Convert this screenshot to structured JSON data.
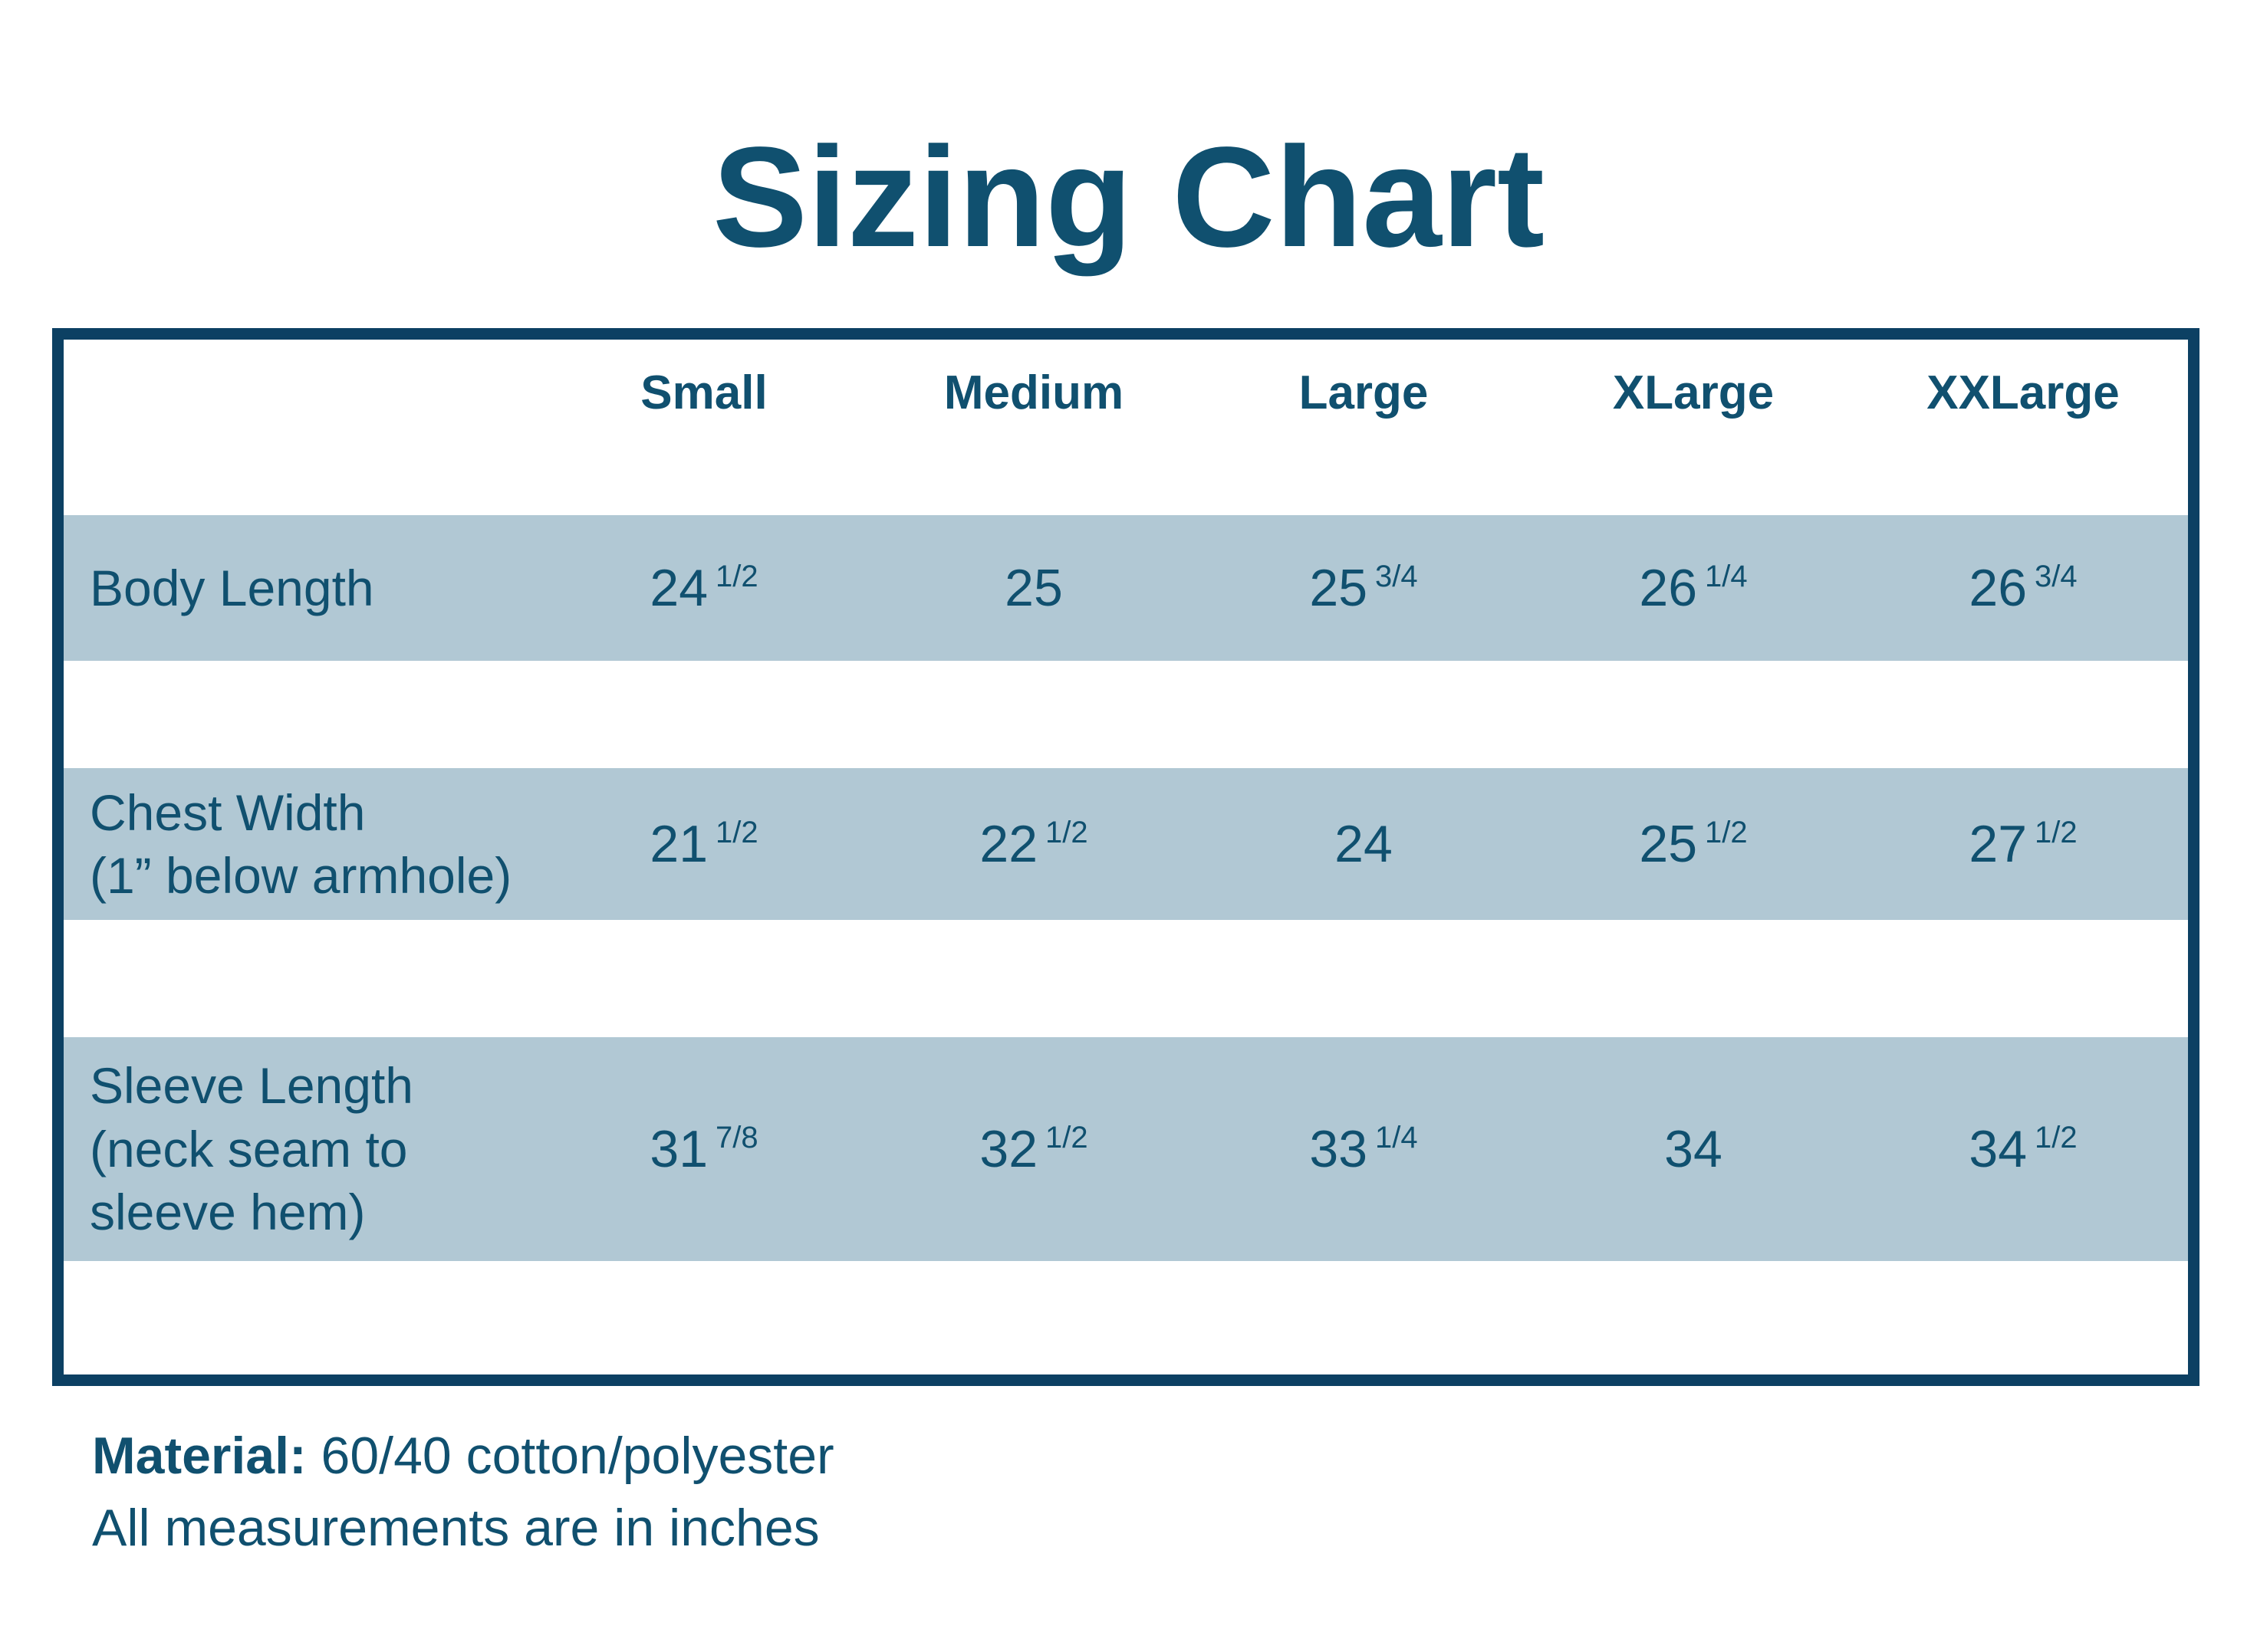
{
  "title": "Sizing Chart",
  "colors": {
    "text": "#10506f",
    "table_border": "#0c4063",
    "row_band": "#b1c8d4",
    "background": "#ffffff"
  },
  "table": {
    "columns": [
      "Small",
      "Medium",
      "Large",
      "XLarge",
      "XXLarge"
    ],
    "rows": [
      {
        "label_lines": [
          "Body Length"
        ],
        "values": [
          {
            "w": "24",
            "f": "1/2"
          },
          {
            "w": "25",
            "f": ""
          },
          {
            "w": "25",
            "f": "3/4"
          },
          {
            "w": "26",
            "f": "1/4"
          },
          {
            "w": "26",
            "f": "3/4"
          }
        ]
      },
      {
        "label_lines": [
          "Chest Width",
          "(1” below armhole)"
        ],
        "values": [
          {
            "w": "21",
            "f": "1/2"
          },
          {
            "w": "22",
            "f": "1/2"
          },
          {
            "w": "24",
            "f": ""
          },
          {
            "w": "25",
            "f": "1/2"
          },
          {
            "w": "27",
            "f": "1/2"
          }
        ]
      },
      {
        "label_lines": [
          "Sleeve Length",
          "(neck seam to",
          "sleeve hem)"
        ],
        "values": [
          {
            "w": "31",
            "f": "7/8"
          },
          {
            "w": "32",
            "f": "1/2"
          },
          {
            "w": "33",
            "f": "1/4"
          },
          {
            "w": "34",
            "f": ""
          },
          {
            "w": "34",
            "f": "1/2"
          }
        ]
      }
    ]
  },
  "footer": {
    "material_label": "Material:",
    "material_value": "60/40 cotton/polyester",
    "note": "All measurements are in inches"
  },
  "chart_data": {
    "type": "table",
    "title": "Sizing Chart",
    "columns": [
      "Small",
      "Medium",
      "Large",
      "XLarge",
      "XXLarge"
    ],
    "rows": [
      {
        "label": "Body Length",
        "values_inches": [
          24.5,
          25,
          25.75,
          26.25,
          26.75
        ],
        "display": [
          "24 1/2",
          "25",
          "25 3/4",
          "26 1/4",
          "26 3/4"
        ]
      },
      {
        "label": "Chest Width (1” below armhole)",
        "values_inches": [
          21.5,
          22.5,
          24,
          25.5,
          27.5
        ],
        "display": [
          "21 1/2",
          "22 1/2",
          "24",
          "25 1/2",
          "27 1/2"
        ]
      },
      {
        "label": "Sleeve Length (neck seam to sleeve hem)",
        "values_inches": [
          31.875,
          32.5,
          33.25,
          34,
          34.5
        ],
        "display": [
          "31 7/8",
          "32 1/2",
          "33 1/4",
          "34",
          "34 1/2"
        ]
      }
    ],
    "units": "inches",
    "material": "60/40 cotton/polyester"
  }
}
